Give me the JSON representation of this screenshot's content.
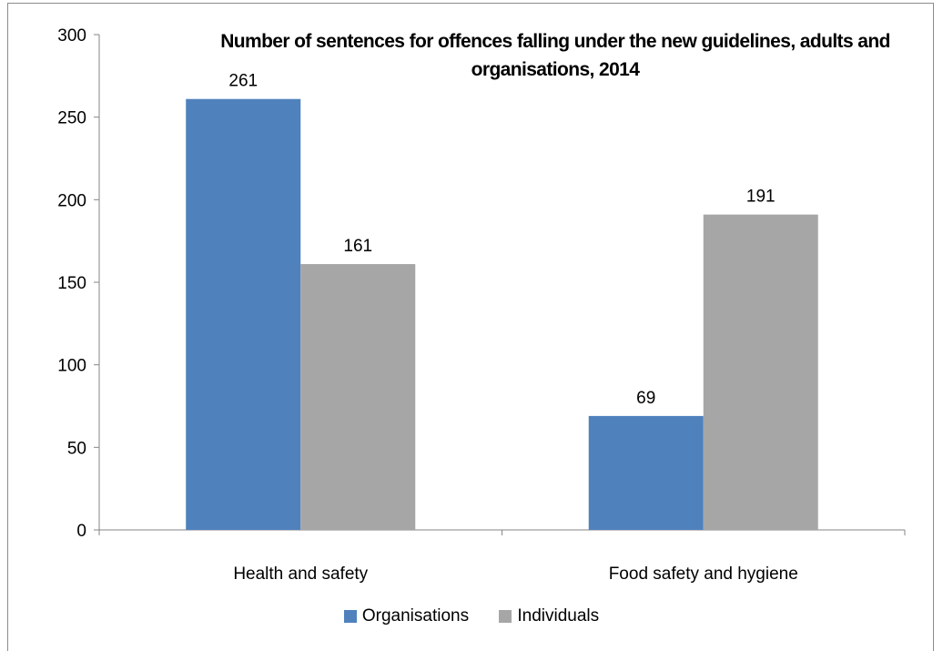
{
  "chart_data": {
    "type": "bar",
    "title": "Number of sentences for offences falling under the new guidelines, adults and organisations, 2014",
    "categories": [
      "Health and safety",
      "Food safety and hygiene"
    ],
    "series": [
      {
        "name": "Organisations",
        "color": "#4f81bd",
        "values": [
          261,
          69
        ]
      },
      {
        "name": "Individuals",
        "color": "#a6a6a6",
        "values": [
          161,
          191
        ]
      }
    ],
    "ylim": [
      0,
      300
    ],
    "yticks": [
      0,
      50,
      100,
      150,
      200,
      250,
      300
    ],
    "grid": false,
    "legend_position": "bottom"
  }
}
